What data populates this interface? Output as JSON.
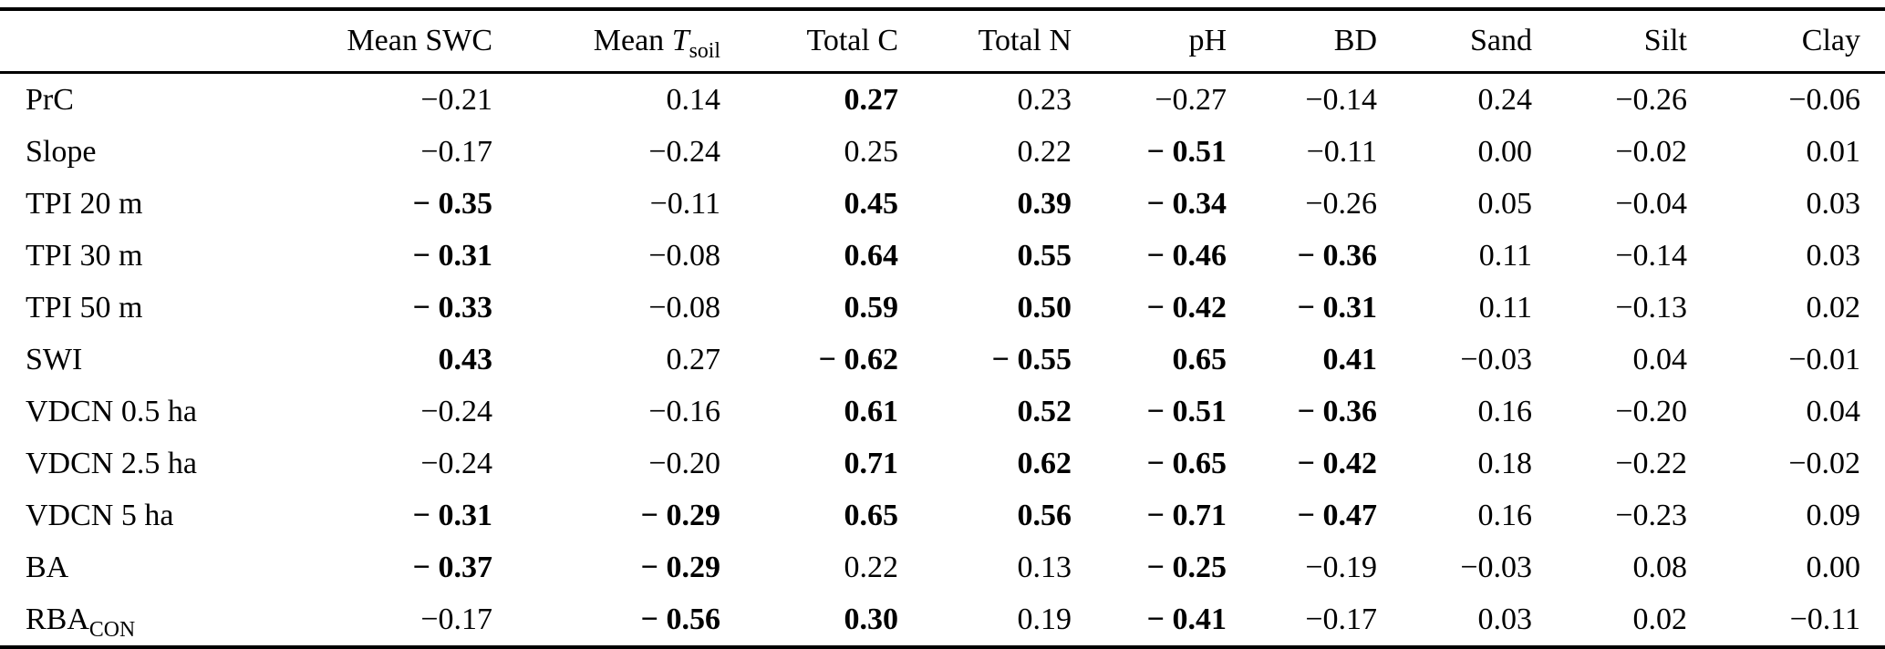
{
  "page": {
    "background": "#ffffff",
    "text_color": "#000000",
    "rule_color": "#000000"
  },
  "chart_data": {
    "type": "table",
    "columns": [
      {
        "label": "Mean SWC"
      },
      {
        "pre": "Mean ",
        "it": "T",
        "sub": "soil"
      },
      {
        "label": "Total C"
      },
      {
        "label": "Total N"
      },
      {
        "label": "pH"
      },
      {
        "label": "BD"
      },
      {
        "label": "Sand"
      },
      {
        "label": "Silt"
      },
      {
        "label": "Clay"
      }
    ],
    "rows": [
      {
        "label": "PrC",
        "cells": [
          {
            "v": "−0.21"
          },
          {
            "v": "0.14"
          },
          {
            "v": "0.27",
            "b": true
          },
          {
            "v": "0.23"
          },
          {
            "v": "−0.27"
          },
          {
            "v": "−0.14"
          },
          {
            "v": "0.24"
          },
          {
            "v": "−0.26"
          },
          {
            "v": "−0.06"
          }
        ]
      },
      {
        "label": "Slope",
        "cells": [
          {
            "v": "−0.17"
          },
          {
            "v": "−0.24"
          },
          {
            "v": "0.25"
          },
          {
            "v": "0.22"
          },
          {
            "v": "− 0.51",
            "b": true
          },
          {
            "v": "−0.11"
          },
          {
            "v": "0.00"
          },
          {
            "v": "−0.02"
          },
          {
            "v": "0.01"
          }
        ]
      },
      {
        "label": "TPI 20 m",
        "cells": [
          {
            "v": "− 0.35",
            "b": true
          },
          {
            "v": "−0.11"
          },
          {
            "v": "0.45",
            "b": true
          },
          {
            "v": "0.39",
            "b": true
          },
          {
            "v": "− 0.34",
            "b": true
          },
          {
            "v": "−0.26"
          },
          {
            "v": "0.05"
          },
          {
            "v": "−0.04"
          },
          {
            "v": "0.03"
          }
        ]
      },
      {
        "label": "TPI 30 m",
        "cells": [
          {
            "v": "− 0.31",
            "b": true
          },
          {
            "v": "−0.08"
          },
          {
            "v": "0.64",
            "b": true
          },
          {
            "v": "0.55",
            "b": true
          },
          {
            "v": "− 0.46",
            "b": true
          },
          {
            "v": "− 0.36",
            "b": true
          },
          {
            "v": "0.11"
          },
          {
            "v": "−0.14"
          },
          {
            "v": "0.03"
          }
        ]
      },
      {
        "label": "TPI 50 m",
        "cells": [
          {
            "v": "− 0.33",
            "b": true
          },
          {
            "v": "−0.08"
          },
          {
            "v": "0.59",
            "b": true
          },
          {
            "v": "0.50",
            "b": true
          },
          {
            "v": "− 0.42",
            "b": true
          },
          {
            "v": "− 0.31",
            "b": true
          },
          {
            "v": "0.11"
          },
          {
            "v": "−0.13"
          },
          {
            "v": "0.02"
          }
        ]
      },
      {
        "label": "SWI",
        "cells": [
          {
            "v": "0.43",
            "b": true
          },
          {
            "v": "0.27"
          },
          {
            "v": "− 0.62",
            "b": true
          },
          {
            "v": "− 0.55",
            "b": true
          },
          {
            "v": "0.65",
            "b": true
          },
          {
            "v": "0.41",
            "b": true
          },
          {
            "v": "−0.03"
          },
          {
            "v": "0.04"
          },
          {
            "v": "−0.01"
          }
        ]
      },
      {
        "label": "VDCN 0.5 ha",
        "cells": [
          {
            "v": "−0.24"
          },
          {
            "v": "−0.16"
          },
          {
            "v": "0.61",
            "b": true
          },
          {
            "v": "0.52",
            "b": true
          },
          {
            "v": "− 0.51",
            "b": true
          },
          {
            "v": "− 0.36",
            "b": true
          },
          {
            "v": "0.16"
          },
          {
            "v": "−0.20"
          },
          {
            "v": "0.04"
          }
        ]
      },
      {
        "label": "VDCN 2.5 ha",
        "cells": [
          {
            "v": "−0.24"
          },
          {
            "v": "−0.20"
          },
          {
            "v": "0.71",
            "b": true
          },
          {
            "v": "0.62",
            "b": true
          },
          {
            "v": "− 0.65",
            "b": true
          },
          {
            "v": "− 0.42",
            "b": true
          },
          {
            "v": "0.18"
          },
          {
            "v": "−0.22"
          },
          {
            "v": "−0.02"
          }
        ]
      },
      {
        "label": "VDCN 5 ha",
        "cells": [
          {
            "v": "− 0.31",
            "b": true
          },
          {
            "v": "− 0.29",
            "b": true
          },
          {
            "v": "0.65",
            "b": true
          },
          {
            "v": "0.56",
            "b": true
          },
          {
            "v": "− 0.71",
            "b": true
          },
          {
            "v": "− 0.47",
            "b": true
          },
          {
            "v": "0.16"
          },
          {
            "v": "−0.23"
          },
          {
            "v": "0.09"
          }
        ]
      },
      {
        "label": "BA",
        "cells": [
          {
            "v": "− 0.37",
            "b": true
          },
          {
            "v": "− 0.29",
            "b": true
          },
          {
            "v": "0.22"
          },
          {
            "v": "0.13"
          },
          {
            "v": "− 0.25",
            "b": true
          },
          {
            "v": "−0.19"
          },
          {
            "v": "−0.03"
          },
          {
            "v": "0.08"
          },
          {
            "v": "0.00"
          }
        ]
      },
      {
        "label": "RBA",
        "sub": "CON",
        "cells": [
          {
            "v": "−0.17"
          },
          {
            "v": "− 0.56",
            "b": true
          },
          {
            "v": "0.30",
            "b": true
          },
          {
            "v": "0.19"
          },
          {
            "v": "− 0.41",
            "b": true
          },
          {
            "v": "−0.17"
          },
          {
            "v": "0.03"
          },
          {
            "v": "0.02"
          },
          {
            "v": "−0.11"
          }
        ]
      }
    ]
  }
}
